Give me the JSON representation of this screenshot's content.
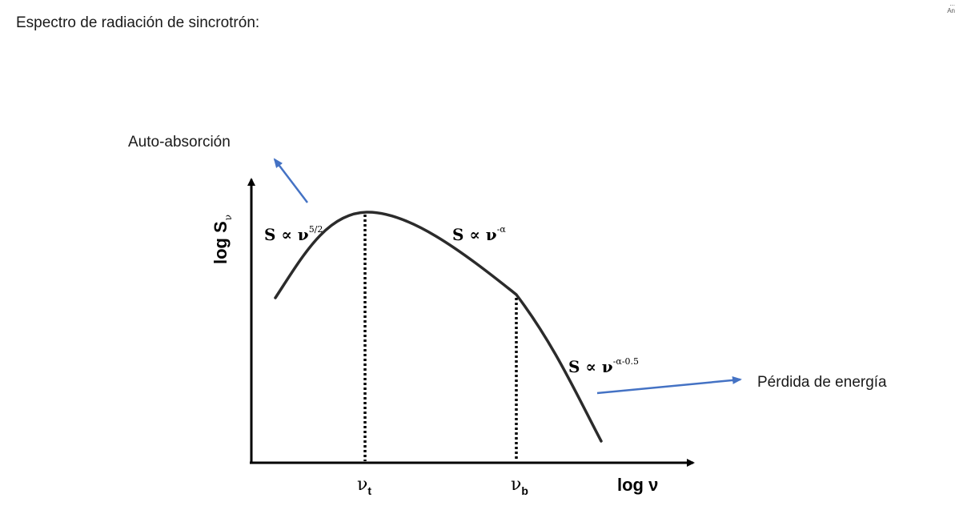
{
  "slide": {
    "title": "Espectro de radiación de sincrotrón:",
    "corner_text_1": "...",
    "corner_text_2": "An"
  },
  "diagram": {
    "y_axis_label": "log S",
    "y_axis_sub": "ν",
    "x_axis_label": "log ν",
    "tick_t": "ν",
    "tick_t_sub": "t",
    "tick_b": "ν",
    "tick_b_sub": "b",
    "law_self_absorption": {
      "base": "S ∝ ν",
      "exp": "5/2"
    },
    "law_thin": {
      "base": "S ∝ ν",
      "exp": "-α"
    },
    "law_loss": {
      "base": "S ∝ ν",
      "exp": "-α-0.5"
    },
    "annotation_absorption": "Auto-absorción",
    "annotation_energy_loss": "Pérdida de energía",
    "colors": {
      "curve": "#2b2b2b",
      "axis": "#000000",
      "arrow": "#4472c4"
    }
  }
}
